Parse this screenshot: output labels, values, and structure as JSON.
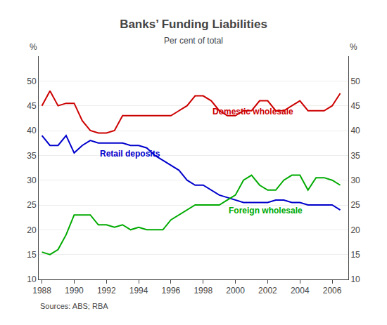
{
  "chart_data": {
    "type": "line",
    "title": "Banks’ Funding Liabilities",
    "subtitle": "Per cent of total",
    "source": "Sources: ABS; RBA",
    "ylabel": "%",
    "y2label": "%",
    "xlim": [
      1987.8,
      2007.0
    ],
    "xticks": [
      1988,
      1990,
      1992,
      1994,
      1996,
      1998,
      2000,
      2002,
      2004,
      2006
    ],
    "ylim": [
      10,
      55
    ],
    "yticks": [
      10,
      15,
      20,
      25,
      30,
      35,
      40,
      45,
      50
    ],
    "y2lim": [
      10,
      55
    ],
    "y2ticks": [
      10,
      15,
      20,
      25,
      30,
      35,
      40,
      45,
      50
    ],
    "grid": true,
    "x": [
      1988,
      1988.5,
      1989,
      1989.5,
      1990,
      1990.5,
      1991,
      1991.5,
      1992,
      1992.5,
      1993,
      1993.5,
      1994,
      1994.5,
      1995,
      1995.5,
      1996,
      1996.5,
      1997,
      1997.5,
      1998,
      1998.5,
      1999,
      1999.5,
      2000,
      2000.5,
      2001,
      2001.5,
      2002,
      2002.5,
      2003,
      2003.5,
      2004,
      2004.5,
      2005,
      2005.5,
      2006,
      2006.5
    ],
    "series": [
      {
        "name": "Domestic wholesale",
        "color": "#cc0000",
        "values": [
          45,
          48,
          45,
          45.5,
          45.5,
          42,
          40,
          39.5,
          39.5,
          40,
          43,
          43,
          43,
          43,
          43,
          43,
          43,
          44,
          45,
          47,
          47,
          46,
          44,
          43,
          43,
          44,
          44,
          46,
          46,
          44,
          44,
          45,
          46,
          44,
          44,
          44,
          45,
          47.5
        ]
      },
      {
        "name": "Retail deposits",
        "color": "#0000cc",
        "values": [
          39,
          37,
          37,
          39,
          35.5,
          37,
          38,
          37.5,
          37.5,
          37.5,
          37.5,
          37,
          37,
          36.5,
          35,
          34,
          33,
          32,
          30,
          29,
          29,
          28,
          27,
          26.5,
          26,
          25.5,
          25.5,
          25.5,
          25.5,
          26,
          26,
          25.5,
          25.5,
          25,
          25,
          25,
          25,
          24
        ]
      },
      {
        "name": "Foreign wholesale",
        "color": "#00aa00",
        "values": [
          15.5,
          15,
          16,
          19,
          23,
          23,
          23,
          21,
          21,
          20.5,
          21,
          20,
          20.5,
          20,
          20,
          20,
          22,
          23,
          24,
          25,
          25,
          25,
          25,
          26,
          27,
          30,
          31,
          29,
          28,
          28,
          30,
          31,
          31,
          28,
          30.5,
          30.5,
          30,
          29
        ]
      }
    ]
  }
}
